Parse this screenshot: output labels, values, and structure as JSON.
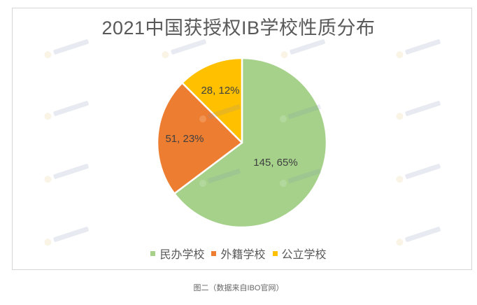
{
  "chart_data": {
    "type": "pie",
    "title": "2021中国获授权IB学校性质分布",
    "categories": [
      "民办学校",
      "外籍学校",
      "公立学校"
    ],
    "values": [
      145,
      51,
      28
    ],
    "percentages": [
      65,
      23,
      12
    ],
    "data_labels": [
      "145, 65%",
      "51, 23%",
      "28, 12%"
    ],
    "colors": [
      "#A5D18A",
      "#ED7D31",
      "#FFC000"
    ],
    "start_angle": "12 o'clock",
    "direction": "clockwise",
    "legend_position": "bottom"
  },
  "legend": {
    "items": [
      {
        "label": "民办学校",
        "color": "#A5D18A"
      },
      {
        "label": "外籍学校",
        "color": "#ED7D31"
      },
      {
        "label": "公立学校",
        "color": "#FFC000"
      }
    ]
  },
  "caption": "图二（数据来自IBO官网）"
}
